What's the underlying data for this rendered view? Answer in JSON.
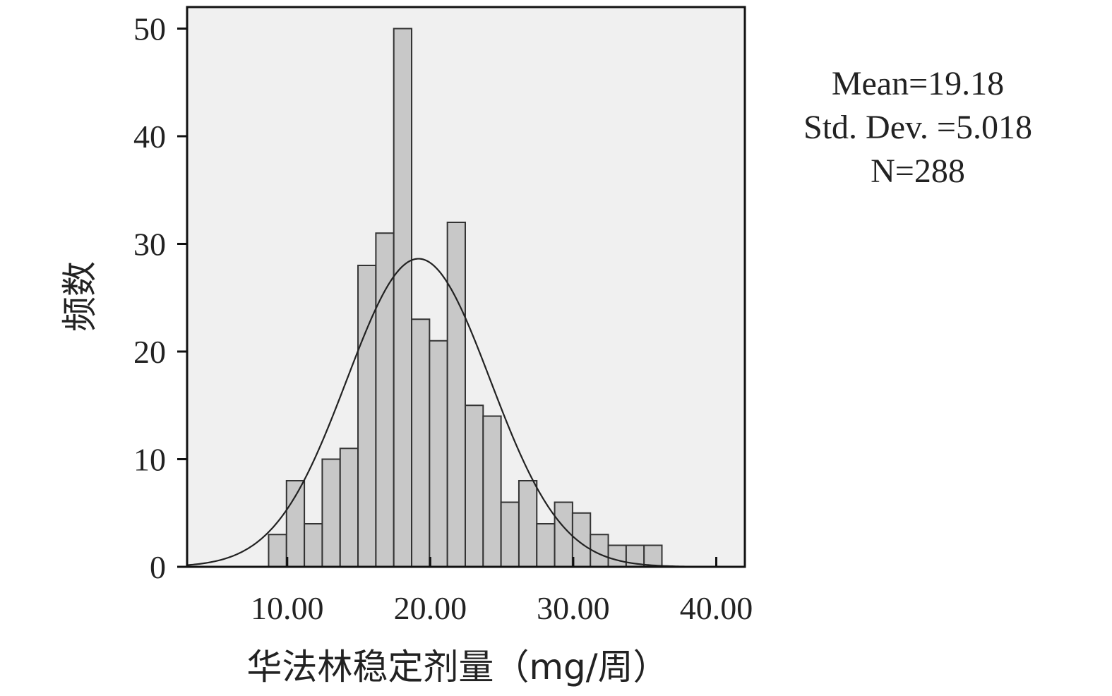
{
  "chart_data": {
    "type": "bar",
    "subtype": "histogram",
    "xlabel": "华法林稳定剂量（mg/周）",
    "ylabel": "频数",
    "xlim": [
      3,
      42
    ],
    "ylim": [
      0,
      52
    ],
    "x_ticks": [
      10,
      20,
      30,
      40
    ],
    "x_tick_labels": [
      "10.00",
      "20.00",
      "30.00",
      "40.00"
    ],
    "y_ticks": [
      0,
      10,
      20,
      30,
      40,
      50
    ],
    "y_tick_labels": [
      "0",
      "10",
      "20",
      "30",
      "40",
      "50"
    ],
    "bin_width": 1.25,
    "bin_start": 8.7,
    "values": [
      3,
      8,
      4,
      10,
      11,
      28,
      31,
      50,
      23,
      21,
      32,
      15,
      14,
      6,
      8,
      4,
      6,
      5,
      3,
      2,
      2,
      2
    ],
    "normal_curve": {
      "mean": 19.18,
      "sd": 5.018,
      "n": 288
    },
    "grid": false,
    "background": "#f0f0f0",
    "bar_color": "#c8c8c8",
    "stats": {
      "mean": "Mean=19.18",
      "sd": "Std. Dev. =5.018",
      "n": "N=288"
    }
  }
}
